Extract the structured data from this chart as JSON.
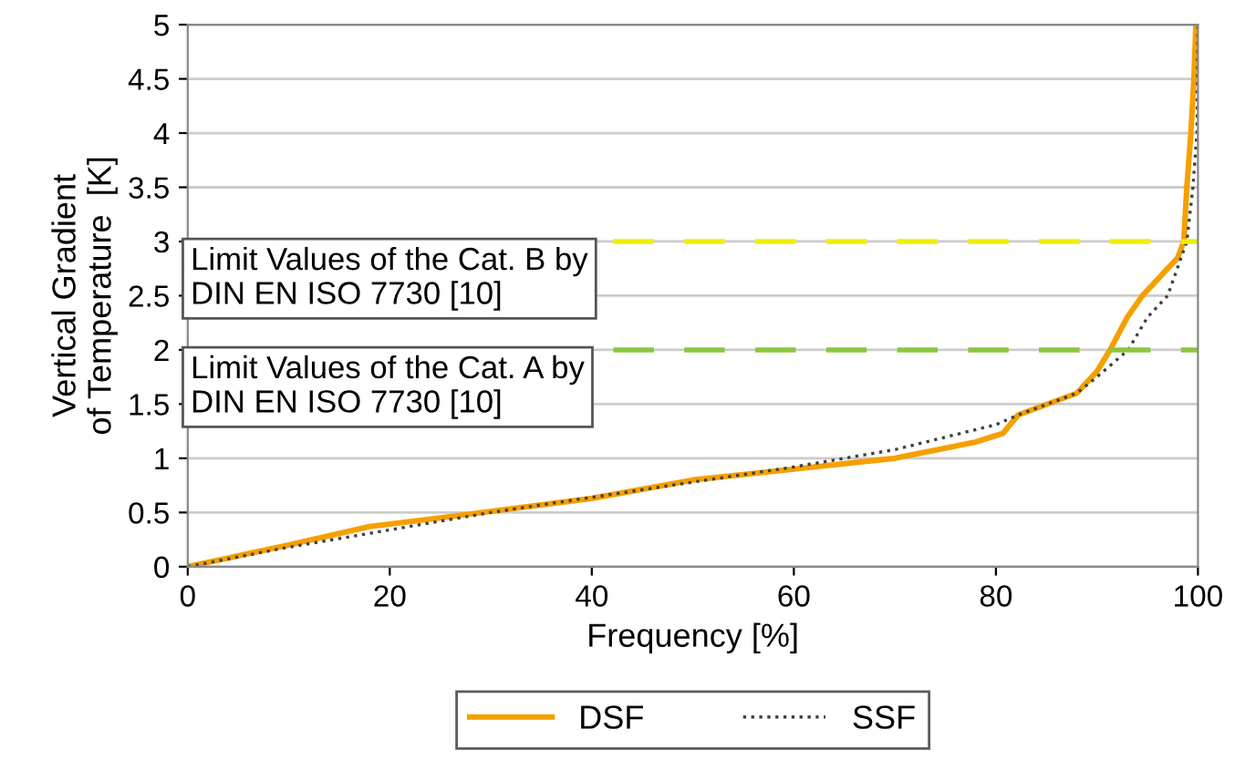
{
  "chart_data": {
    "type": "line",
    "xlabel": "Frequency [%]",
    "ylabel": "Vertical Gradient\nof Temperature  [K]",
    "xlim": [
      0,
      100
    ],
    "xticks": [
      0,
      20,
      40,
      60,
      80,
      100
    ],
    "ylim": [
      0,
      5
    ],
    "yticks": [
      0,
      0.5,
      1,
      1.5,
      2,
      2.5,
      3,
      3.5,
      4,
      4.5,
      5
    ],
    "grid": "y",
    "legend": "bottom",
    "marker": "none",
    "ref_lines": [
      {
        "axis": "y",
        "value": 3,
        "label": "Limit Values of the Cat. B by\nDIN EN ISO 7730 [10]",
        "color": "#f0f000",
        "line_style": "dashed"
      },
      {
        "axis": "y",
        "value": 2,
        "label": "Limit Values of the Cat. A by\nDIN EN ISO 7730 [10]",
        "color": "#8cc63f",
        "line_style": "dashed"
      }
    ],
    "series": [
      {
        "name": "DSF",
        "color": "#f5a000",
        "line_style": "solid",
        "x": [
          0,
          10,
          18,
          25,
          40,
          50,
          60,
          70,
          78,
          80.7,
          82.2,
          88,
          90,
          91.3,
          93,
          94.5,
          96,
          98,
          98.6,
          98.9,
          99.3,
          99.6,
          99.8
        ],
        "values": [
          0,
          0.2,
          0.37,
          0.45,
          0.63,
          0.8,
          0.9,
          1.0,
          1.15,
          1.23,
          1.4,
          1.6,
          1.8,
          2.0,
          2.3,
          2.5,
          2.65,
          2.85,
          3.0,
          3.5,
          4.0,
          4.5,
          5.0
        ]
      },
      {
        "name": "SSF",
        "color": "#404040",
        "line_style": "dotted",
        "x": [
          0,
          10,
          20,
          30,
          40,
          50,
          60,
          70,
          80,
          82.2,
          88,
          90,
          93.1,
          95,
          97,
          98.9,
          99.5,
          99.9,
          100
        ],
        "values": [
          0,
          0.18,
          0.34,
          0.5,
          0.64,
          0.78,
          0.92,
          1.08,
          1.31,
          1.4,
          1.6,
          1.75,
          2.0,
          2.3,
          2.5,
          3.0,
          3.5,
          4.0,
          5.0
        ]
      }
    ]
  }
}
